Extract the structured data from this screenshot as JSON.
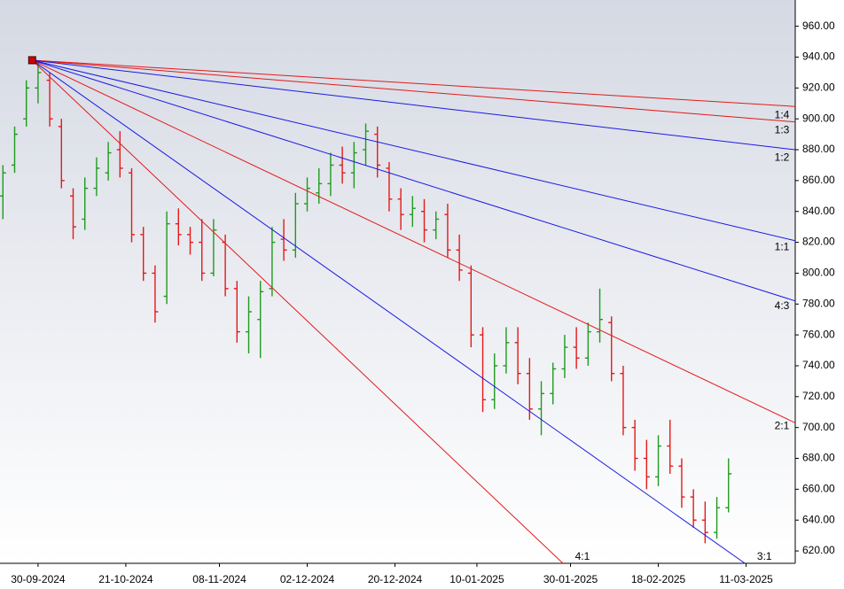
{
  "chart_data": {
    "type": "ohlc",
    "x": [
      -6,
      -4,
      -2,
      0,
      2,
      4,
      6,
      8,
      10,
      12,
      14,
      16,
      18,
      20,
      22,
      24,
      26,
      28,
      30,
      32,
      34,
      36,
      38,
      40,
      42,
      44,
      46,
      48,
      50,
      52,
      54,
      56,
      58,
      60,
      62,
      64,
      66,
      68,
      70,
      72,
      74,
      76,
      78,
      80,
      82,
      84,
      86,
      88,
      90,
      92,
      94,
      96,
      98,
      100,
      102,
      104,
      106,
      108,
      110,
      112,
      114,
      116,
      118
    ],
    "open": [
      850,
      870,
      900,
      920,
      925,
      895,
      850,
      835,
      855,
      865,
      880,
      865,
      825,
      800,
      785,
      832,
      825,
      820,
      800,
      820,
      790,
      762,
      770,
      790,
      822,
      815,
      845,
      852,
      858,
      870,
      865,
      880,
      890,
      868,
      848,
      838,
      840,
      828,
      838,
      815,
      800,
      760,
      718,
      740,
      755,
      735,
      712,
      722,
      738,
      752,
      745,
      762,
      768,
      735,
      700,
      680,
      668,
      688,
      675,
      655,
      640,
      632,
      648
    ],
    "high": [
      870,
      895,
      925,
      938,
      930,
      900,
      855,
      862,
      875,
      885,
      892,
      868,
      830,
      805,
      840,
      842,
      830,
      835,
      835,
      825,
      795,
      785,
      795,
      830,
      835,
      852,
      862,
      868,
      878,
      882,
      885,
      897,
      895,
      872,
      855,
      850,
      848,
      840,
      845,
      825,
      805,
      765,
      748,
      765,
      765,
      745,
      730,
      742,
      760,
      765,
      768,
      790,
      772,
      740,
      705,
      692,
      695,
      705,
      680,
      660,
      652,
      655,
      680
    ],
    "low": [
      835,
      865,
      895,
      910,
      895,
      855,
      822,
      828,
      850,
      860,
      862,
      820,
      795,
      768,
      780,
      818,
      812,
      795,
      798,
      785,
      755,
      748,
      745,
      785,
      808,
      810,
      840,
      845,
      850,
      858,
      855,
      870,
      862,
      840,
      828,
      830,
      820,
      822,
      810,
      795,
      752,
      710,
      712,
      735,
      728,
      705,
      695,
      715,
      732,
      738,
      740,
      755,
      730,
      695,
      672,
      660,
      662,
      670,
      648,
      635,
      625,
      628,
      645
    ],
    "close": [
      865,
      890,
      920,
      930,
      900,
      860,
      830,
      855,
      868,
      878,
      868,
      825,
      800,
      775,
      832,
      825,
      820,
      800,
      828,
      790,
      762,
      775,
      788,
      820,
      815,
      845,
      855,
      858,
      870,
      865,
      878,
      892,
      870,
      848,
      838,
      842,
      828,
      835,
      815,
      802,
      760,
      718,
      740,
      755,
      735,
      712,
      722,
      738,
      752,
      745,
      762,
      770,
      735,
      700,
      680,
      668,
      688,
      675,
      655,
      640,
      632,
      648,
      670
    ],
    "up_color": "#1f9a1f",
    "down_color": "#e31a1a",
    "xlim": [
      -6.5,
      129.4
    ],
    "ylim": [
      612,
      977
    ],
    "xticks": [
      {
        "value": 0,
        "label": "30-09-2024"
      },
      {
        "value": 15,
        "label": "21-10-2024"
      },
      {
        "value": 31,
        "label": "08-11-2024"
      },
      {
        "value": 46,
        "label": "02-12-2024"
      },
      {
        "value": 61,
        "label": "20-12-2024"
      },
      {
        "value": 75,
        "label": "10-01-2025"
      },
      {
        "value": 91,
        "label": "30-01-2025"
      },
      {
        "value": 106,
        "label": "18-02-2025"
      },
      {
        "value": 121,
        "label": "11-03-2025"
      }
    ],
    "yticks": [
      {
        "value": 620,
        "label": "620.00"
      },
      {
        "value": 640,
        "label": "640.00"
      },
      {
        "value": 660,
        "label": "660.00"
      },
      {
        "value": 680,
        "label": "680.00"
      },
      {
        "value": 700,
        "label": "700.00"
      },
      {
        "value": 720,
        "label": "720.00"
      },
      {
        "value": 740,
        "label": "740.00"
      },
      {
        "value": 760,
        "label": "760.00"
      },
      {
        "value": 780,
        "label": "780.00"
      },
      {
        "value": 800,
        "label": "800.00"
      },
      {
        "value": 820,
        "label": "820.00"
      },
      {
        "value": 840,
        "label": "840.00"
      },
      {
        "value": 860,
        "label": "860.00"
      },
      {
        "value": 880,
        "label": "880.00"
      },
      {
        "value": 900,
        "label": "900.00"
      },
      {
        "value": 920,
        "label": "920.00"
      },
      {
        "value": 940,
        "label": "940.00"
      },
      {
        "value": 960,
        "label": "960.00"
      }
    ],
    "fan": {
      "origin": {
        "x": -1,
        "y": 938
      },
      "color": "#cc0000",
      "lines": [
        {
          "name": "1:4",
          "color": "#e31a1a",
          "end": {
            "x": 129.4,
            "y": 908
          }
        },
        {
          "name": "1:3",
          "color": "#e31a1a",
          "end": {
            "x": 129.4,
            "y": 898
          }
        },
        {
          "name": "1:2",
          "color": "#1a1ae3",
          "end": {
            "x": 129.4,
            "y": 880
          }
        },
        {
          "name": "1:1",
          "color": "#1a1ae3",
          "end": {
            "x": 129.4,
            "y": 821
          }
        },
        {
          "name": "4:3",
          "color": "#1a1ae3",
          "end": {
            "x": 129.4,
            "y": 782
          }
        },
        {
          "name": "2:1",
          "color": "#e31a1a",
          "end": {
            "x": 129.4,
            "y": 703
          }
        },
        {
          "name": "3:1",
          "color": "#1a1ae3",
          "end": {
            "x": 120.8,
            "y": 612
          }
        },
        {
          "name": "4:1",
          "color": "#e31a1a",
          "end": {
            "x": 89.7,
            "y": 612
          }
        }
      ]
    }
  }
}
